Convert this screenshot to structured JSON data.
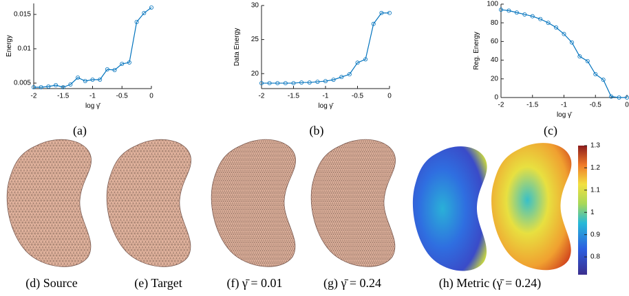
{
  "chart_data": [
    {
      "type": "line",
      "caption": "(a)",
      "x_label": "log γ̄",
      "y_label": "Energy",
      "x": [
        -2,
        -1.875,
        -1.75,
        -1.625,
        -1.5,
        -1.375,
        -1.25,
        -1.125,
        -1,
        -0.875,
        -0.75,
        -0.625,
        -0.5,
        -0.375,
        -0.25,
        -0.125,
        0
      ],
      "series": [
        {
          "color": "#0072bd",
          "values": [
            0.0044,
            0.0044,
            0.0045,
            0.0047,
            0.0044,
            0.0048,
            0.0058,
            0.0053,
            0.0055,
            0.0055,
            0.007,
            0.0069,
            0.0078,
            0.008,
            0.0139,
            0.0152,
            0.016
          ]
        }
      ],
      "xlim": [
        -2,
        0
      ],
      "xticks": [
        -2,
        -1.5,
        -1,
        -0.5,
        0
      ],
      "ylim": [
        0.0042,
        0.0166
      ],
      "yticks": [
        0.005,
        0.01,
        0.015
      ]
    },
    {
      "type": "line",
      "caption": "(b)",
      "x_label": "log γ̄",
      "y_label": "Data Energy",
      "x": [
        -2,
        -1.875,
        -1.75,
        -1.625,
        -1.5,
        -1.375,
        -1.25,
        -1.125,
        -1,
        -0.875,
        -0.75,
        -0.625,
        -0.5,
        -0.375,
        -0.25,
        -0.125,
        0
      ],
      "series": [
        {
          "color": "#0072bd",
          "values": [
            18.6,
            18.6,
            18.6,
            18.6,
            18.6,
            18.7,
            18.7,
            18.8,
            18.9,
            19.1,
            19.5,
            19.9,
            21.6,
            22.1,
            27.3,
            28.9,
            28.9
          ]
        }
      ],
      "xlim": [
        -2,
        0
      ],
      "xticks": [
        -2,
        -1.5,
        -1,
        -0.5,
        0
      ],
      "ylim": [
        17.8,
        30
      ],
      "yticks": [
        20,
        25,
        30
      ]
    },
    {
      "type": "line",
      "caption": "(c)",
      "x_label": "log γ̄",
      "y_label": "Reg. Energy",
      "x": [
        -2,
        -1.875,
        -1.75,
        -1.625,
        -1.5,
        -1.375,
        -1.25,
        -1.125,
        -1,
        -0.875,
        -0.75,
        -0.625,
        -0.5,
        -0.375,
        -0.25,
        -0.125,
        0
      ],
      "series": [
        {
          "color": "#0072bd",
          "values": [
            94,
            93,
            91,
            89,
            87,
            84,
            80,
            75,
            68,
            59,
            44,
            39,
            25,
            19,
            1,
            0,
            0
          ]
        }
      ],
      "xlim": [
        -2,
        0
      ],
      "xticks": [
        -2,
        -1.5,
        -1,
        -0.5,
        0
      ],
      "ylim": [
        0,
        100
      ],
      "yticks": [
        0,
        20,
        40,
        60,
        80,
        100
      ]
    }
  ],
  "figures": [
    {
      "caption": "(d) Source"
    },
    {
      "caption": "(e) Target"
    },
    {
      "caption": "(f) γ̄ = 0.01"
    },
    {
      "caption": "(g) γ̄ = 0.24"
    },
    {
      "caption": "(h) Metric (γ̄ = 0.24)"
    }
  ],
  "colorbar": {
    "lim": [
      0.72,
      1.3
    ],
    "ticks": [
      0.8,
      0.9,
      1,
      1.1,
      1.2,
      1.3
    ]
  }
}
